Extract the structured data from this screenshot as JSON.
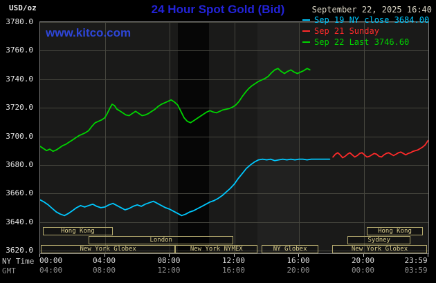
{
  "header": {
    "units_label": "USD/oz",
    "title": "24 Hour Spot Gold (Bid)",
    "datetime": "September 22, 2025 16:40"
  },
  "watermark_url": "www.kitco.com",
  "axis": {
    "ny_time_label": "NY Time",
    "gmt_label": "GMT"
  },
  "legend": {
    "items": [
      {
        "label": "Sep 19 NY close 3684.00",
        "color": "#00c8ff"
      },
      {
        "label": "Sep 21 Sunday",
        "color": "#ff2a2a"
      },
      {
        "label": "Sep 22 Last 3746.60",
        "color": "#00d400"
      }
    ]
  },
  "colors": {
    "title_blue": "#2323d8",
    "watermark_blue": "#2e46d8",
    "date_text": "#ded9c8",
    "axis_text": "#e4e4e4",
    "gmt_text": "#8e8e8e",
    "grid": "#46463e",
    "plot_bg": "#1a1a19",
    "plot_border": "#7d7d7d",
    "session_border": "#b3a96e",
    "session_text": "#dccf8e"
  },
  "chart_data": {
    "type": "line",
    "title": "24 Hour Spot Gold (Bid)",
    "x_unit": "hour (NY time)",
    "y_axis": {
      "unit": "USD/oz",
      "min": 3620,
      "max": 3780,
      "tick_step": 20,
      "tick_labels": [
        "3780.0",
        "3760.0",
        "3740.0",
        "3720.0",
        "3700.0",
        "3680.0",
        "3660.0",
        "3640.0",
        "3620.0"
      ]
    },
    "x_axis": {
      "grid_hours": [
        4,
        8,
        12,
        16,
        20
      ],
      "ticks": [
        {
          "hour": 0,
          "ny": "00:00",
          "gmt": "04:00"
        },
        {
          "hour": 4,
          "ny": "04:00",
          "gmt": "08:00"
        },
        {
          "hour": 8,
          "ny": "08:00",
          "gmt": "12:00"
        },
        {
          "hour": 12,
          "ny": "12:00",
          "gmt": "16:00"
        },
        {
          "hour": 16,
          "ny": "16:00",
          "gmt": "20:00"
        },
        {
          "hour": 20,
          "ny": "20:00",
          "gmt": "00:00"
        },
        {
          "hour": 23.983,
          "ny": "23:59",
          "gmt": "03:59"
        }
      ]
    },
    "bands": [
      {
        "start_hour": 8.5,
        "end_hour": 10.45,
        "color": "#060606"
      },
      {
        "start_hour": 13.45,
        "end_hour": 16.05,
        "color": "#212120"
      }
    ],
    "sessions": [
      {
        "row": 0,
        "label": "Hong Kong",
        "start": 0.15,
        "end": 4.5
      },
      {
        "row": 0,
        "label": "Hong Kong",
        "start": 20.2,
        "end": 23.65
      },
      {
        "row": 1,
        "label": "London",
        "start": 3.0,
        "end": 11.95
      },
      {
        "row": 1,
        "label": "Sydney",
        "start": 19.0,
        "end": 22.9
      },
      {
        "row": 2,
        "label": "New York Globex",
        "start": 0.05,
        "end": 8.35
      },
      {
        "row": 2,
        "label": "New York NYMEX",
        "start": 8.35,
        "end": 13.45
      },
      {
        "row": 2,
        "label": "NY Globex",
        "start": 13.7,
        "end": 17.2
      },
      {
        "row": 2,
        "label": "New York Globex",
        "start": 18.05,
        "end": 23.92
      }
    ],
    "series": [
      {
        "id": "sep19",
        "name": "Sep 19 NY close",
        "close": 3684.0,
        "color": "#00c8ff",
        "points": [
          [
            0,
            3655.5
          ],
          [
            0.25,
            3654
          ],
          [
            0.5,
            3652
          ],
          [
            0.75,
            3649.5
          ],
          [
            1,
            3647
          ],
          [
            1.25,
            3645.5
          ],
          [
            1.5,
            3644.5
          ],
          [
            1.75,
            3646
          ],
          [
            2,
            3648
          ],
          [
            2.25,
            3650
          ],
          [
            2.5,
            3651.5
          ],
          [
            2.75,
            3650.5
          ],
          [
            3,
            3651.5
          ],
          [
            3.25,
            3652.5
          ],
          [
            3.5,
            3651
          ],
          [
            3.75,
            3650
          ],
          [
            4,
            3650.5
          ],
          [
            4.25,
            3652
          ],
          [
            4.5,
            3653
          ],
          [
            4.75,
            3651.5
          ],
          [
            5,
            3650
          ],
          [
            5.25,
            3648.5
          ],
          [
            5.5,
            3649.5
          ],
          [
            5.75,
            3651
          ],
          [
            6,
            3652
          ],
          [
            6.25,
            3651
          ],
          [
            6.5,
            3652.5
          ],
          [
            6.75,
            3653.5
          ],
          [
            7,
            3654.5
          ],
          [
            7.25,
            3653
          ],
          [
            7.5,
            3651.5
          ],
          [
            7.75,
            3650
          ],
          [
            8,
            3649
          ],
          [
            8.25,
            3647.5
          ],
          [
            8.5,
            3646
          ],
          [
            8.75,
            3644.5
          ],
          [
            9,
            3645.5
          ],
          [
            9.25,
            3647
          ],
          [
            9.5,
            3648
          ],
          [
            9.75,
            3649.5
          ],
          [
            10,
            3651
          ],
          [
            10.25,
            3652.5
          ],
          [
            10.5,
            3654
          ],
          [
            10.75,
            3655
          ],
          [
            11,
            3656.5
          ],
          [
            11.25,
            3658.5
          ],
          [
            11.5,
            3661
          ],
          [
            11.75,
            3663.5
          ],
          [
            12,
            3666.5
          ],
          [
            12.25,
            3670.5
          ],
          [
            12.5,
            3674
          ],
          [
            12.75,
            3677.5
          ],
          [
            13,
            3680
          ],
          [
            13.25,
            3682
          ],
          [
            13.5,
            3683.5
          ],
          [
            13.75,
            3684
          ],
          [
            14,
            3683.5
          ],
          [
            14.25,
            3684
          ],
          [
            14.5,
            3683
          ],
          [
            14.75,
            3683.5
          ],
          [
            15,
            3684
          ],
          [
            15.25,
            3683.5
          ],
          [
            15.5,
            3684
          ],
          [
            15.75,
            3683.5
          ],
          [
            16,
            3684
          ],
          [
            16.25,
            3684
          ],
          [
            16.5,
            3683.5
          ],
          [
            16.75,
            3684
          ],
          [
            17,
            3684
          ],
          [
            17.3,
            3684
          ],
          [
            17.6,
            3684
          ],
          [
            17.9,
            3684
          ]
        ]
      },
      {
        "id": "sep21",
        "name": "Sep 21 Sunday",
        "color": "#ff2a2a",
        "points": [
          [
            18.1,
            3685.5
          ],
          [
            18.25,
            3687.5
          ],
          [
            18.4,
            3688.5
          ],
          [
            18.55,
            3687
          ],
          [
            18.7,
            3685
          ],
          [
            18.85,
            3686
          ],
          [
            19,
            3687.5
          ],
          [
            19.15,
            3688.5
          ],
          [
            19.3,
            3687
          ],
          [
            19.45,
            3685.5
          ],
          [
            19.6,
            3686.5
          ],
          [
            19.75,
            3688
          ],
          [
            19.9,
            3688.5
          ],
          [
            20.05,
            3687
          ],
          [
            20.2,
            3685.5
          ],
          [
            20.35,
            3686
          ],
          [
            20.5,
            3687
          ],
          [
            20.65,
            3688
          ],
          [
            20.8,
            3687.5
          ],
          [
            20.95,
            3686
          ],
          [
            21.1,
            3685.5
          ],
          [
            21.25,
            3687
          ],
          [
            21.4,
            3688
          ],
          [
            21.55,
            3688.5
          ],
          [
            21.7,
            3687.5
          ],
          [
            21.85,
            3686.5
          ],
          [
            22,
            3687.5
          ],
          [
            22.15,
            3688.5
          ],
          [
            22.3,
            3689
          ],
          [
            22.45,
            3688
          ],
          [
            22.6,
            3687
          ],
          [
            22.75,
            3688
          ],
          [
            22.9,
            3688.5
          ],
          [
            23.05,
            3689.5
          ],
          [
            23.2,
            3690
          ],
          [
            23.35,
            3690.5
          ],
          [
            23.5,
            3691.5
          ],
          [
            23.65,
            3692.5
          ],
          [
            23.8,
            3694
          ],
          [
            23.95,
            3696.5
          ],
          [
            23.98,
            3697
          ]
        ]
      },
      {
        "id": "sep22",
        "name": "Sep 22",
        "last": 3746.6,
        "color": "#00d400",
        "points": [
          [
            0,
            3693
          ],
          [
            0.2,
            3691.5
          ],
          [
            0.4,
            3690
          ],
          [
            0.6,
            3691
          ],
          [
            0.8,
            3689.5
          ],
          [
            1,
            3690.5
          ],
          [
            1.2,
            3692
          ],
          [
            1.4,
            3693.5
          ],
          [
            1.6,
            3694.5
          ],
          [
            1.8,
            3696
          ],
          [
            2,
            3697.5
          ],
          [
            2.2,
            3699
          ],
          [
            2.4,
            3700.5
          ],
          [
            2.6,
            3701.5
          ],
          [
            2.8,
            3702.5
          ],
          [
            3,
            3704
          ],
          [
            3.2,
            3707
          ],
          [
            3.4,
            3709.5
          ],
          [
            3.6,
            3710.5
          ],
          [
            3.8,
            3711.5
          ],
          [
            4,
            3713
          ],
          [
            4.15,
            3716
          ],
          [
            4.3,
            3719.5
          ],
          [
            4.45,
            3722.5
          ],
          [
            4.6,
            3721.5
          ],
          [
            4.75,
            3719
          ],
          [
            4.9,
            3718
          ],
          [
            5.1,
            3716.5
          ],
          [
            5.3,
            3715
          ],
          [
            5.5,
            3714.5
          ],
          [
            5.7,
            3716
          ],
          [
            5.9,
            3717.5
          ],
          [
            6.1,
            3716
          ],
          [
            6.3,
            3714.5
          ],
          [
            6.5,
            3715
          ],
          [
            6.7,
            3716
          ],
          [
            6.9,
            3717.5
          ],
          [
            7.1,
            3719
          ],
          [
            7.3,
            3721
          ],
          [
            7.5,
            3722.5
          ],
          [
            7.7,
            3723.5
          ],
          [
            7.9,
            3724.5
          ],
          [
            8.1,
            3725.5
          ],
          [
            8.3,
            3724
          ],
          [
            8.5,
            3722
          ],
          [
            8.7,
            3717.5
          ],
          [
            8.9,
            3713
          ],
          [
            9.1,
            3710.5
          ],
          [
            9.3,
            3709.5
          ],
          [
            9.5,
            3711
          ],
          [
            9.7,
            3712.5
          ],
          [
            9.9,
            3714
          ],
          [
            10.1,
            3715.5
          ],
          [
            10.3,
            3717
          ],
          [
            10.5,
            3718
          ],
          [
            10.7,
            3717
          ],
          [
            10.9,
            3716.5
          ],
          [
            11.1,
            3717.5
          ],
          [
            11.3,
            3718.5
          ],
          [
            11.5,
            3719
          ],
          [
            11.7,
            3719.5
          ],
          [
            11.9,
            3720.5
          ],
          [
            12.1,
            3722
          ],
          [
            12.3,
            3724.5
          ],
          [
            12.5,
            3728
          ],
          [
            12.7,
            3731
          ],
          [
            12.9,
            3733.5
          ],
          [
            13.1,
            3735.5
          ],
          [
            13.3,
            3737
          ],
          [
            13.5,
            3738.5
          ],
          [
            13.7,
            3739.5
          ],
          [
            13.9,
            3740.5
          ],
          [
            14.1,
            3742
          ],
          [
            14.3,
            3744.5
          ],
          [
            14.5,
            3746.5
          ],
          [
            14.7,
            3747.5
          ],
          [
            14.9,
            3745.5
          ],
          [
            15.1,
            3744
          ],
          [
            15.3,
            3745.5
          ],
          [
            15.5,
            3746.5
          ],
          [
            15.7,
            3745
          ],
          [
            15.9,
            3744
          ],
          [
            16.1,
            3745
          ],
          [
            16.3,
            3746
          ],
          [
            16.5,
            3747.5
          ],
          [
            16.67,
            3746.6
          ]
        ]
      }
    ]
  }
}
